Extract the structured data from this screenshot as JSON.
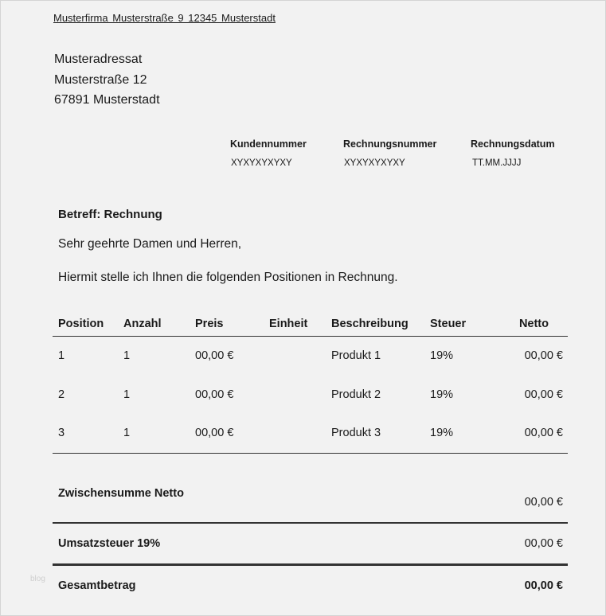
{
  "sender_line": "Musterfirma   Musterstraße 9   12345   Musterstadt",
  "recipient": [
    "Musteradressat",
    "Musterstraße 12",
    "67891 Musterstadt"
  ],
  "info": [
    {
      "label": "Kundennummer",
      "value": "XYXYXYXYXY"
    },
    {
      "label": "Rechnungsnummer",
      "value": "XYXYXYXYXY"
    },
    {
      "label": "Rechnungsdatum",
      "value": "TT.MM.JJJJ"
    }
  ],
  "subject": "Betreff: Rechnung",
  "greeting": "Sehr geehrte Damen und Herren,",
  "intro": "Hiermit stelle ich Ihnen die folgenden Positionen in Rechnung.",
  "table": {
    "headers": [
      "Position",
      "Anzahl",
      "Preis",
      "Einheit",
      "Beschreibung",
      "Steuer",
      "Netto"
    ],
    "rows": [
      [
        "1",
        "1",
        "00,00 €",
        "",
        "Produkt 1",
        "19%",
        "00,00 €"
      ],
      [
        "2",
        "1",
        "00,00 €",
        "",
        "Produkt 2",
        "19%",
        "00,00 €"
      ],
      [
        "3",
        "1",
        "00,00 €",
        "",
        "Produkt 3",
        "19%",
        "00,00 €"
      ]
    ]
  },
  "totals": {
    "subtotal_label": "Zwischensumme Netto",
    "subtotal_value": "00,00 €",
    "tax_label": "Umsatzsteuer 19%",
    "tax_value": "00,00 €",
    "total_label": "Gesamtbetrag",
    "total_value": "00,00 €"
  },
  "watermark": "blog"
}
